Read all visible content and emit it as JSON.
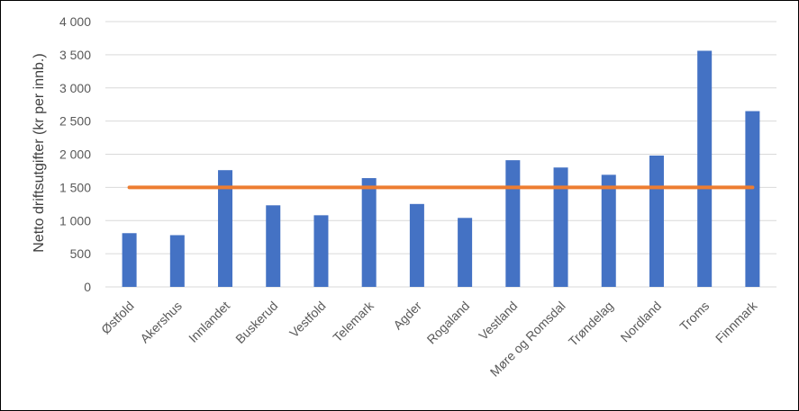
{
  "chart_data": {
    "type": "bar",
    "title": "",
    "xlabel": "",
    "ylabel": "Netto driftsutgifter (kr per innb.)",
    "ylim": [
      0,
      4000
    ],
    "yticks": [
      0,
      500,
      1000,
      1500,
      2000,
      2500,
      3000,
      3500,
      4000
    ],
    "ytick_labels": [
      "0",
      "500",
      "1 000",
      "1 500",
      "2 000",
      "2 500",
      "3 000",
      "3 500",
      "4 000"
    ],
    "grid": true,
    "legend": "none",
    "categories": [
      "Østfold",
      "Akershus",
      "Innlandet",
      "Buskerud",
      "Vestfold",
      "Telemark",
      "Agder",
      "Rogaland",
      "Vestland",
      "Møre og Romsdal",
      "Trøndelag",
      "Nordland",
      "Troms",
      "Finnmark"
    ],
    "series": [
      {
        "type": "bar",
        "color": "#4472C4",
        "values": [
          810,
          780,
          1760,
          1230,
          1080,
          1640,
          1250,
          1040,
          1910,
          1800,
          1690,
          1980,
          3560,
          2650
        ]
      },
      {
        "type": "line",
        "color": "#ED7D31",
        "values": [
          1500,
          1500,
          1500,
          1500,
          1500,
          1500,
          1500,
          1500,
          1500,
          1500,
          1500,
          1500,
          1500,
          1500
        ]
      }
    ]
  }
}
